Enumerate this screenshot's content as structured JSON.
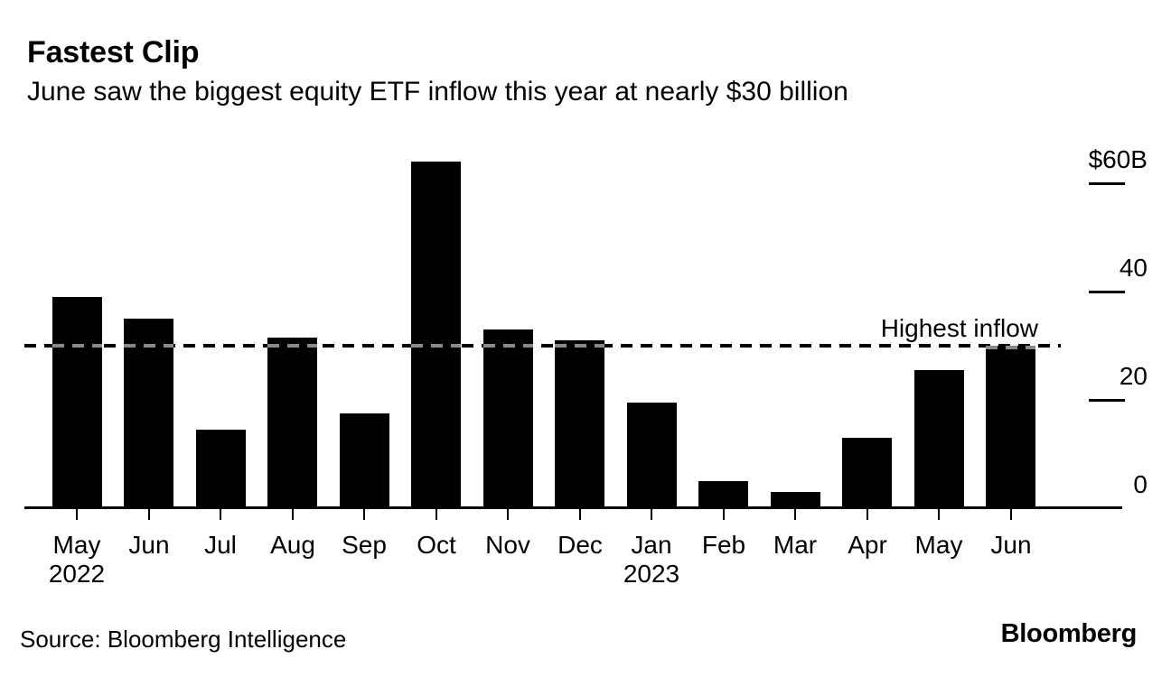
{
  "header": {
    "title": "Fastest Clip",
    "subtitle": "June saw the biggest equity ETF inflow this year at nearly $30 billion"
  },
  "chart_data": {
    "type": "bar",
    "title": "Fastest Clip",
    "subtitle": "June saw the biggest equity ETF inflow this year at nearly $30 billion",
    "unit": "USD billions",
    "categories": [
      "May 2022",
      "Jun 2022",
      "Jul 2022",
      "Aug 2022",
      "Sep 2022",
      "Oct 2022",
      "Nov 2022",
      "Dec 2022",
      "Jan 2023",
      "Feb 2023",
      "Mar 2023",
      "Apr 2023",
      "May 2023",
      "Jun 2023"
    ],
    "x_tick_labels": [
      {
        "month": "May",
        "year": "2022"
      },
      {
        "month": "Jun",
        "year": ""
      },
      {
        "month": "Jul",
        "year": ""
      },
      {
        "month": "Aug",
        "year": ""
      },
      {
        "month": "Sep",
        "year": ""
      },
      {
        "month": "Oct",
        "year": ""
      },
      {
        "month": "Nov",
        "year": ""
      },
      {
        "month": "Dec",
        "year": ""
      },
      {
        "month": "Jan",
        "year": "2023"
      },
      {
        "month": "Feb",
        "year": ""
      },
      {
        "month": "Mar",
        "year": ""
      },
      {
        "month": "Apr",
        "year": ""
      },
      {
        "month": "May",
        "year": ""
      },
      {
        "month": "Jun",
        "year": ""
      }
    ],
    "values": [
      39,
      35,
      14.5,
      31.5,
      17.5,
      64,
      33,
      31,
      19.5,
      5,
      3,
      13,
      25.5,
      30
    ],
    "bar_color": "#000000",
    "background_color": "#ffffff",
    "ylim": [
      0,
      64
    ],
    "grid": false,
    "legend": false,
    "y_axis": {
      "side": "right",
      "ticks": [
        {
          "value": 60,
          "label": "$60B"
        },
        {
          "value": 40,
          "label": "40"
        },
        {
          "value": 20,
          "label": "20"
        },
        {
          "value": 0,
          "label": "0"
        }
      ]
    },
    "annotation": {
      "type": "dashed-line",
      "value": 30,
      "label": "Highest inflow"
    }
  },
  "footer": {
    "source": "Source: Bloomberg Intelligence",
    "logo": "Bloomberg"
  }
}
